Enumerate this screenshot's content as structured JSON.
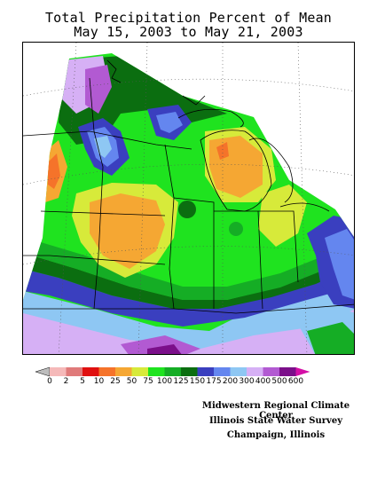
{
  "title": {
    "line1": "Total Precipitation Percent of Mean",
    "line2": "May 15, 2003 to May 21, 2003"
  },
  "legend": {
    "bins": [
      {
        "label": "0",
        "color": "#bdbdbd"
      },
      {
        "label": "2",
        "color": "#f5b9b9"
      },
      {
        "label": "5",
        "color": "#e07a7a"
      },
      {
        "label": "10",
        "color": "#e01010"
      },
      {
        "label": "25",
        "color": "#f5732a"
      },
      {
        "label": "50",
        "color": "#f5a733"
      },
      {
        "label": "75",
        "color": "#d7ea3a"
      },
      {
        "label": "100",
        "color": "#1fe31f"
      },
      {
        "label": "125",
        "color": "#15ad25"
      },
      {
        "label": "150",
        "color": "#0b6e10"
      },
      {
        "label": "175",
        "color": "#3a3fbf"
      },
      {
        "label": "200",
        "color": "#6486ef"
      },
      {
        "label": "300",
        "color": "#8ec7f3"
      },
      {
        "label": "400",
        "color": "#d6b0f5"
      },
      {
        "label": "500",
        "color": "#b25ad2"
      },
      {
        "label": "600",
        "color": "#7b0f8a"
      },
      {
        "label": "",
        "color": "#d40fa6"
      }
    ]
  },
  "credits": {
    "line1": "Midwestern Regional Climate Center",
    "line2": "Illinois State Water Survey",
    "line3": "Champaign, Illinois"
  }
}
